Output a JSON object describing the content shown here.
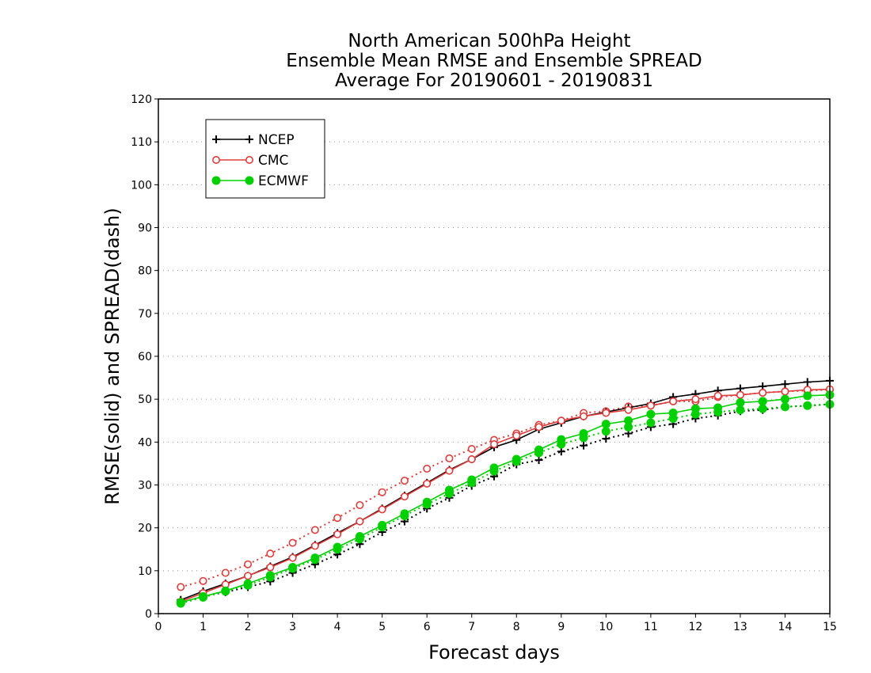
{
  "chart_data": {
    "type": "line",
    "title": [
      "North American 500hPa Height",
      "Ensemble Mean RMSE and Ensemble SPREAD",
      "Average For 20190601 - 20190831"
    ],
    "xlabel": "Forecast days",
    "ylabel": "RMSE(solid) and SPREAD(dash)",
    "xlim": [
      0,
      15
    ],
    "ylim": [
      0,
      120
    ],
    "xticks": [
      0,
      1,
      2,
      3,
      4,
      5,
      6,
      7,
      8,
      9,
      10,
      11,
      12,
      13,
      14,
      15
    ],
    "yticks": [
      0,
      10,
      20,
      30,
      40,
      50,
      60,
      70,
      80,
      90,
      100,
      110,
      120
    ],
    "grid": "horizontal dotted",
    "legend_position": "top-left",
    "x": [
      0.5,
      1,
      1.5,
      2,
      2.5,
      3,
      3.5,
      4,
      4.5,
      5,
      5.5,
      6,
      6.5,
      7,
      7.5,
      8,
      8.5,
      9,
      9.5,
      10,
      10.5,
      11,
      11.5,
      12,
      12.5,
      13,
      13.5,
      14,
      14.5,
      15
    ],
    "series": [
      {
        "name": "NCEP",
        "color": "#000000",
        "marker": "plus",
        "linestyle": "solid",
        "values": [
          3.2,
          5.2,
          7.0,
          8.8,
          11.0,
          13.2,
          16.0,
          18.8,
          21.5,
          24.5,
          27.5,
          30.5,
          33.5,
          36.0,
          38.8,
          40.5,
          43.0,
          44.5,
          46.0,
          47.0,
          48.0,
          49.0,
          50.5,
          51.2,
          52.0,
          52.5,
          53.0,
          53.5,
          54.0,
          54.3
        ]
      },
      {
        "name": "NCEP",
        "color": "#000000",
        "marker": "plus",
        "linestyle": "dotted",
        "values": [
          2.5,
          4.0,
          5.0,
          6.2,
          7.5,
          9.5,
          11.5,
          13.8,
          16.2,
          19.0,
          21.5,
          24.5,
          27.0,
          29.8,
          32.0,
          34.8,
          35.8,
          37.8,
          39.2,
          40.8,
          42.0,
          43.5,
          44.2,
          45.5,
          46.2,
          47.2,
          47.5,
          48.2,
          48.5,
          48.8
        ]
      },
      {
        "name": "CMC",
        "color": "#e03c3c",
        "marker": "open-circle",
        "linestyle": "solid",
        "values": [
          2.8,
          4.8,
          6.8,
          8.8,
          10.8,
          13.0,
          15.8,
          18.5,
          21.5,
          24.3,
          27.3,
          30.3,
          33.3,
          36.0,
          39.5,
          41.5,
          43.5,
          45.0,
          46.0,
          46.8,
          47.5,
          48.5,
          49.5,
          50.0,
          50.8,
          51.0,
          51.5,
          51.8,
          52.2,
          52.3
        ]
      },
      {
        "name": "CMC",
        "color": "#e03c3c",
        "marker": "open-circle",
        "linestyle": "dotted",
        "values": [
          6.2,
          7.6,
          9.5,
          11.5,
          14.0,
          16.5,
          19.5,
          22.3,
          25.3,
          28.3,
          31.0,
          33.8,
          36.2,
          38.4,
          40.5,
          42.0,
          44.0,
          45.0,
          46.8,
          47.2,
          48.3,
          48.5,
          49.5,
          49.5,
          50.5,
          51.0,
          51.5,
          51.8,
          52.0,
          52.2
        ]
      },
      {
        "name": "ECMWF",
        "color": "#00d000",
        "marker": "filled-circle",
        "linestyle": "solid",
        "values": [
          2.6,
          4.0,
          5.3,
          7.0,
          8.9,
          10.8,
          13.0,
          15.5,
          18.0,
          20.6,
          23.3,
          26.0,
          28.8,
          31.2,
          34.0,
          36.0,
          38.2,
          40.6,
          42.0,
          44.2,
          45.0,
          46.5,
          46.8,
          47.8,
          48.0,
          49.2,
          49.5,
          50.0,
          50.8,
          51.0
        ]
      },
      {
        "name": "ECMWF",
        "color": "#00d000",
        "marker": "filled-circle",
        "linestyle": "dotted",
        "values": [
          2.4,
          3.8,
          5.2,
          6.6,
          8.5,
          10.5,
          12.6,
          15.0,
          17.4,
          20.2,
          22.8,
          25.5,
          28.0,
          30.5,
          33.2,
          35.5,
          37.5,
          39.5,
          41.0,
          42.5,
          43.5,
          44.5,
          45.5,
          46.5,
          47.0,
          47.5,
          47.8,
          48.2,
          48.5,
          48.8
        ]
      }
    ],
    "legend": [
      {
        "name": "NCEP",
        "color": "#000000",
        "marker": "plus"
      },
      {
        "name": "CMC",
        "color": "#e03c3c",
        "marker": "open-circle"
      },
      {
        "name": "ECMWF",
        "color": "#00d000",
        "marker": "filled-circle"
      }
    ]
  }
}
